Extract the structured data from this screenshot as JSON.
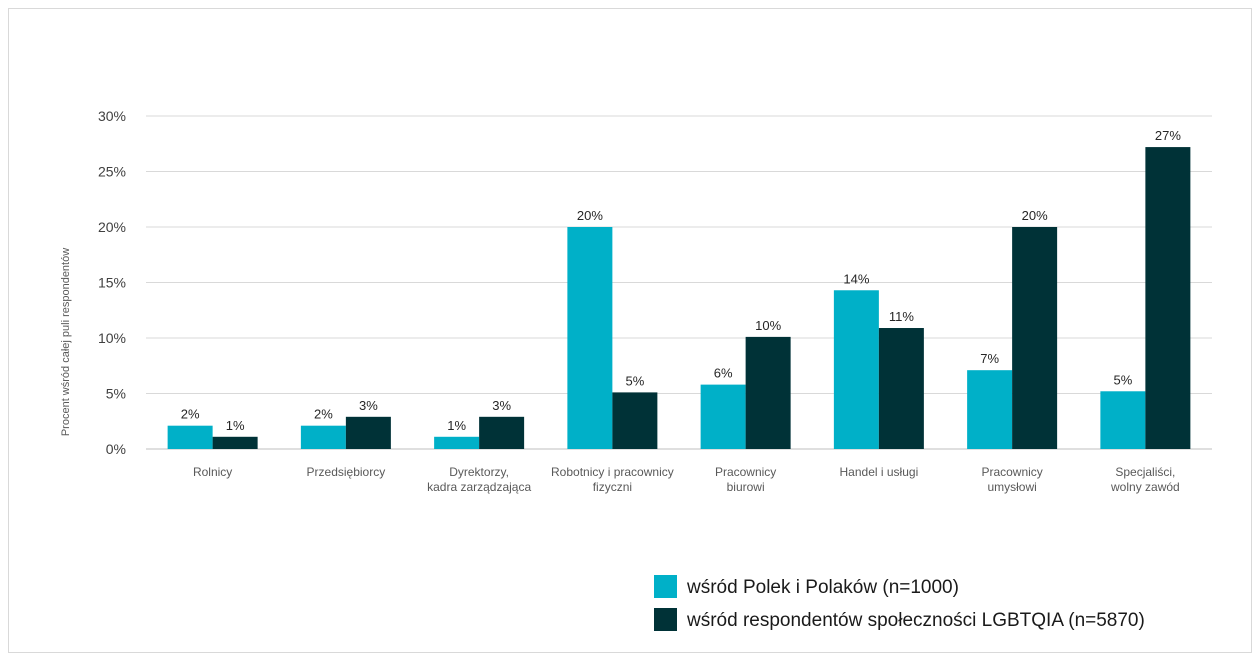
{
  "chart_data": {
    "type": "bar",
    "ylabel": "Procent wśród całej puli respondentów",
    "ylim": [
      0,
      30
    ],
    "yticks": [
      "0%",
      "5%",
      "10%",
      "15%",
      "20%",
      "25%",
      "30%"
    ],
    "grid": true,
    "legend_position": "bottom-right",
    "categories": [
      [
        "Rolnicy"
      ],
      [
        "Przedsiębiorcy"
      ],
      [
        "Dyrektorzy,",
        "kadra zarządzająca"
      ],
      [
        "Robotnicy i pracownicy",
        "fizyczni"
      ],
      [
        "Pracownicy",
        "biurowi"
      ],
      [
        "Handel i usługi"
      ],
      [
        "Pracownicy",
        "umysłowi"
      ],
      [
        "Specjaliści,",
        "wolny zawód"
      ]
    ],
    "series": [
      {
        "name": "wśród Polek i Polaków (n=1000)",
        "color": "#00b0c8",
        "values": [
          2.1,
          2.1,
          1.1,
          20.0,
          5.8,
          14.3,
          7.1,
          5.2
        ],
        "labels": [
          "2%",
          "2%",
          "1%",
          "20%",
          "6%",
          "14%",
          "7%",
          "5%"
        ]
      },
      {
        "name": "wśród respondentów społeczności LGBTQIA (n=5870)",
        "color": "#003237",
        "values": [
          1.1,
          2.9,
          2.9,
          5.1,
          10.1,
          10.9,
          20.0,
          27.2
        ],
        "labels": [
          "1%",
          "3%",
          "3%",
          "5%",
          "10%",
          "11%",
          "20%",
          "27%"
        ]
      }
    ]
  }
}
